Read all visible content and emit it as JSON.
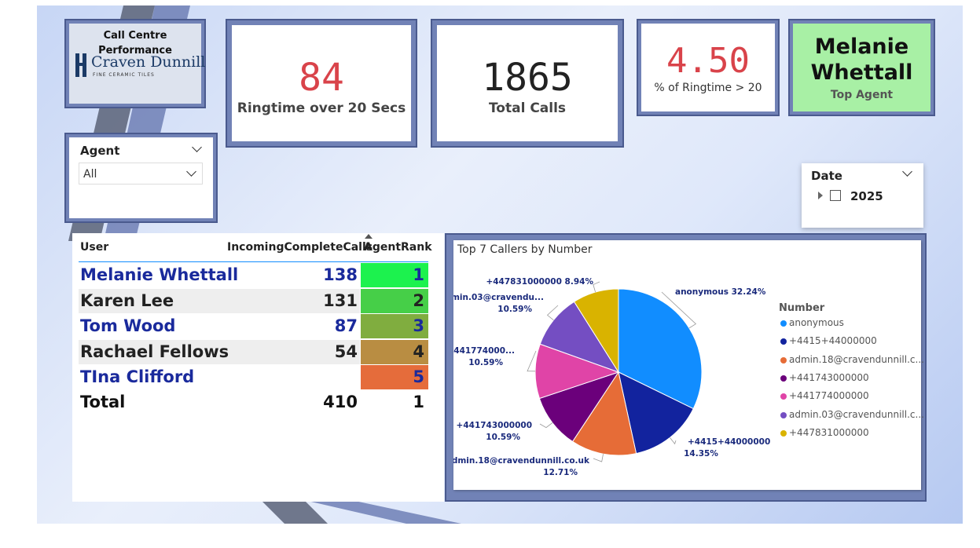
{
  "logo": {
    "title": "Call Centre Performance",
    "company_name": "Craven Dunnill",
    "tagline": "FINE CERAMIC TILES"
  },
  "kpis": {
    "ringtime_over_20": {
      "value": "84",
      "label": "Ringtime over 20 Secs",
      "color": "#d9434a"
    },
    "total_calls": {
      "value": "1865",
      "label": "Total Calls",
      "color": "#222222"
    },
    "pct_ringtime": {
      "value": "4.50",
      "label": "% of Ringtime > 20",
      "color": "#d9434a"
    },
    "top_agent": {
      "value": "Melanie Whettall",
      "label": "Top Agent",
      "bg": "#a8f0a5"
    }
  },
  "agent_slicer": {
    "label": "Agent",
    "value": "All"
  },
  "date_slicer": {
    "label": "Date",
    "item": "2025"
  },
  "table": {
    "headers": [
      "User",
      "IncomingCompleteCalls",
      "AgentRank"
    ],
    "rows": [
      {
        "user": "Melanie Whettall",
        "calls": "138",
        "rank": "1",
        "user_color": "#1a2a9c",
        "rank_bg": "#1cf24e"
      },
      {
        "user": "Karen Lee",
        "calls": "131",
        "rank": "2",
        "user_color": "#222222",
        "rank_bg": "#46cf48"
      },
      {
        "user": "Tom Wood",
        "calls": "87",
        "rank": "3",
        "user_color": "#1a2a9c",
        "rank_bg": "#80ad3f"
      },
      {
        "user": "Rachael Fellows",
        "calls": "54",
        "rank": "4",
        "user_color": "#222222",
        "rank_bg": "#b98d42"
      },
      {
        "user": "TIna Clifford",
        "calls": "",
        "rank": "5",
        "user_color": "#1a2a9c",
        "rank_bg": "#e56c3b"
      }
    ],
    "total": {
      "label": "Total",
      "calls": "410",
      "rank": "1"
    }
  },
  "chart_data": {
    "type": "pie",
    "title": "Top 7 Callers by Number",
    "legend_title": "Number",
    "legend_position": "right",
    "slices": [
      {
        "name": "anonymous",
        "value": 32.24,
        "color": "#118dff",
        "legend": "anonymous",
        "label": "anonymous 32.24%"
      },
      {
        "name": "+4415+44000000",
        "value": 14.35,
        "color": "#12239e",
        "legend": "+4415+44000000",
        "label": "+4415+44000000",
        "pct": "14.35%"
      },
      {
        "name": "admin.18@cravendunnill.co.uk",
        "value": 12.71,
        "color": "#e66c37",
        "legend": "admin.18@cravendunnill.c...",
        "label": "admin.18@cravendunnill.co.uk",
        "pct": "12.71%"
      },
      {
        "name": "+441743000000",
        "value": 10.59,
        "color": "#6b007b",
        "legend": "+441743000000",
        "label": "+441743000000",
        "pct": "10.59%"
      },
      {
        "name": "+441774000000",
        "value": 10.59,
        "color": "#e044a7",
        "legend": "+441774000000",
        "label": "+441774000...",
        "pct": "10.59%"
      },
      {
        "name": "admin.03@cravendunnill.co.uk",
        "value": 10.59,
        "color": "#744ec2",
        "legend": "admin.03@cravendunnill.c...",
        "label": "admin.03@cravendu...",
        "pct": "10.59%"
      },
      {
        "name": "+447831000000",
        "value": 8.94,
        "color": "#d9b300",
        "legend": "+447831000000",
        "label": "+447831000000 8.94%"
      }
    ]
  }
}
